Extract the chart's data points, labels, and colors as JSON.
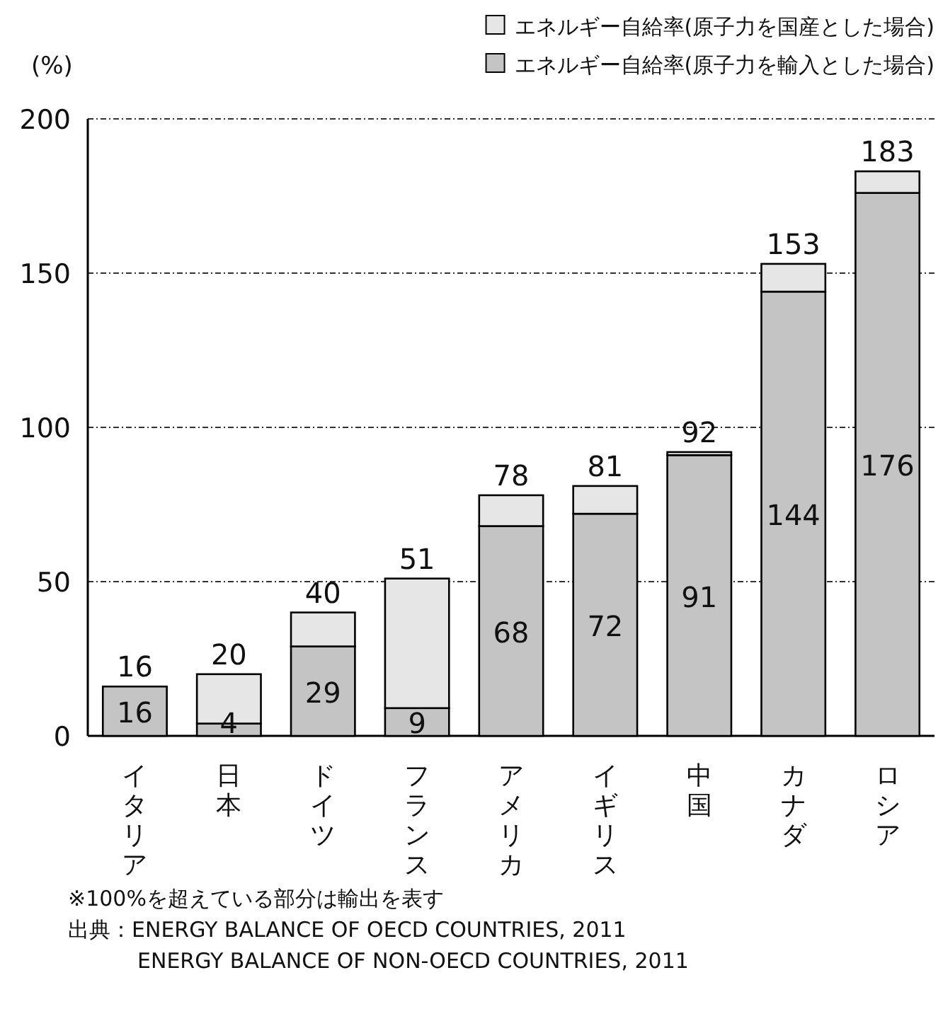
{
  "chart_data": {
    "type": "bar",
    "stacked": true,
    "ylabel": "(%)",
    "categories": [
      "イタリア",
      "日本",
      "ドイツ",
      "フランス",
      "アメリカ",
      "イギリス",
      "中国",
      "カナダ",
      "ロシア"
    ],
    "series": [
      {
        "name": "エネルギー自給率(原子力を輸入とした場合)",
        "color": "#c4c4c4",
        "values": [
          16,
          4,
          29,
          9,
          68,
          72,
          91,
          144,
          176
        ],
        "value_labels": [
          "16",
          "4",
          "29",
          "9",
          "68",
          "72",
          "91",
          "144",
          "176"
        ]
      },
      {
        "name": "エネルギー自給率(原子力を国産とした場合)",
        "color": "#e6e6e6",
        "values": [
          0,
          16,
          11,
          42,
          10,
          9,
          1,
          9,
          7
        ]
      }
    ],
    "totals": [
      "16",
      "20",
      "40",
      "51",
      "78",
      "81",
      "92",
      "153",
      "183"
    ],
    "ylim": [
      0,
      200
    ],
    "yticks": [
      0,
      50,
      100,
      150,
      200
    ],
    "grid": "y",
    "legend": "top right",
    "annotations": [
      "※100%を超えている部分は輸出を表す",
      "出典：ENERGY BALANCE OF OECD COUNTRIES, 2011",
      "ENERGY BALANCE OF NON-OECD COUNTRIES, 2011"
    ]
  }
}
